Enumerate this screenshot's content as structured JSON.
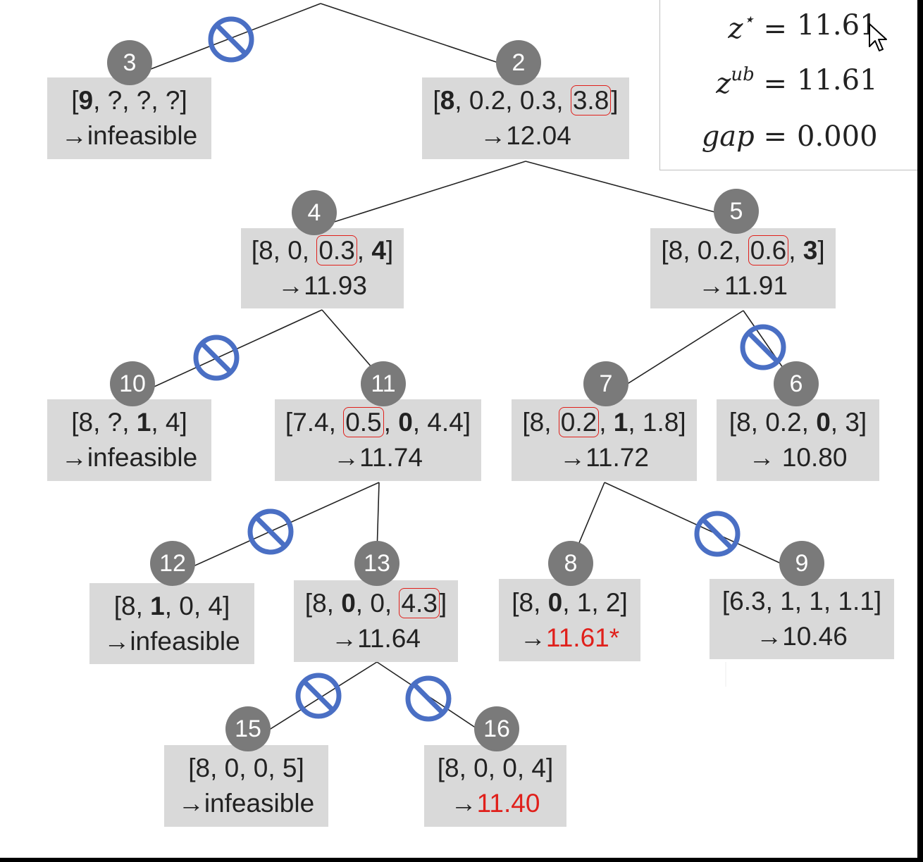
{
  "summary": {
    "z_star_label": "z",
    "z_star_sup": "⋆",
    "z_star_value": "11.61",
    "z_ub_label": "z",
    "z_ub_sup": "ub",
    "z_ub_value": "11.61",
    "gap_label": "gap",
    "gap_value": "0.000",
    "equals": "="
  },
  "nodes": {
    "n3": {
      "id": "3",
      "result": "infeasible"
    },
    "n2": {
      "id": "2",
      "result": "12.04"
    },
    "n4": {
      "id": "4",
      "result": "11.93"
    },
    "n5": {
      "id": "5",
      "result": "11.91"
    },
    "n10": {
      "id": "10",
      "result": "infeasible"
    },
    "n11": {
      "id": "11",
      "result": "11.74"
    },
    "n7": {
      "id": "7",
      "result": "11.72"
    },
    "n6": {
      "id": "6",
      "result": " 10.80"
    },
    "n12": {
      "id": "12",
      "result": "infeasible"
    },
    "n13": {
      "id": "13",
      "result": "11.64"
    },
    "n8": {
      "id": "8",
      "result": "11.61*",
      "result_color": "#e0201b"
    },
    "n9": {
      "id": "9",
      "result": "10.46"
    },
    "n15": {
      "id": "15",
      "result": "infeasible"
    },
    "n16": {
      "id": "16",
      "result": "11.40",
      "result_color": "#e0201b"
    }
  },
  "vectors": {
    "n3": [
      "9",
      "?",
      "?",
      "?"
    ],
    "n2": [
      "8",
      "0.2",
      "0.3",
      "3.8"
    ],
    "n4": [
      "8",
      "0",
      "0.3",
      "4"
    ],
    "n5": [
      "8",
      "0.2",
      "0.6",
      "3"
    ],
    "n10": [
      "8",
      "?",
      "1",
      "4"
    ],
    "n11": [
      "7.4",
      "0.5",
      "0",
      "4.4"
    ],
    "n7": [
      "8",
      "0.2",
      "1",
      "1.8"
    ],
    "n6": [
      "8",
      "0.2",
      "0",
      "3"
    ],
    "n12": [
      "8",
      "1",
      "0",
      "4"
    ],
    "n13": [
      "8",
      "0",
      "0",
      "4.3"
    ],
    "n8": [
      "8",
      "0",
      "1",
      "2"
    ],
    "n9": [
      "6.3",
      "1",
      "1",
      "1.1"
    ],
    "n15": [
      "8",
      "0",
      "0",
      "5"
    ],
    "n16": [
      "8",
      "0",
      "0",
      "4"
    ]
  },
  "arrow_symbol": "→",
  "colors": {
    "box": "#d9d9d9",
    "badge": "#7a7a7a",
    "highlight": "#e0201b",
    "prune": "#4a6fc4"
  },
  "icons": {
    "prune": "prohibited-icon",
    "cursor": "mouse-cursor-icon"
  }
}
